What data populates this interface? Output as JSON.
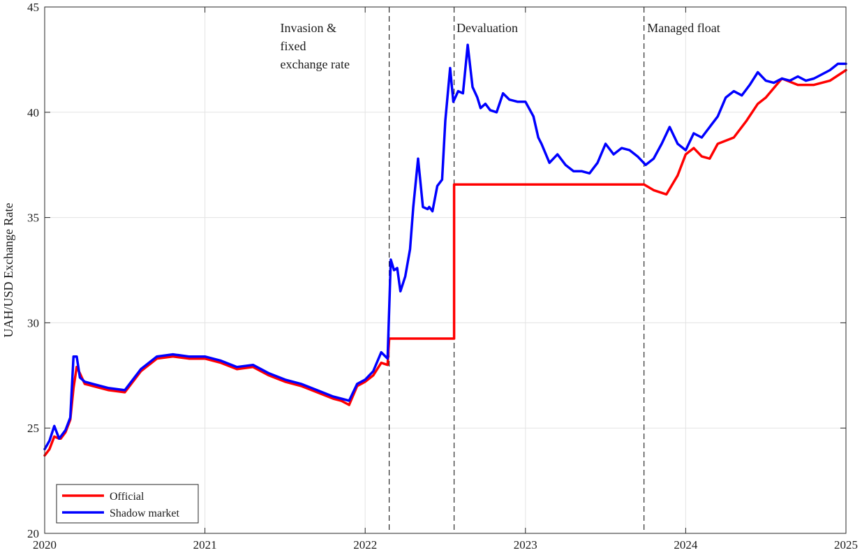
{
  "chart_data": {
    "type": "line",
    "title": "",
    "xlabel": "",
    "ylabel": "UAH/USD Exchange Rate",
    "xlim": [
      2020,
      2025
    ],
    "ylim": [
      20,
      45
    ],
    "x_ticks": [
      2020,
      2021,
      2022,
      2023,
      2024,
      2025
    ],
    "x_tick_labels": [
      "2020",
      "2021",
      "2022",
      "2023",
      "2024",
      "2025"
    ],
    "y_ticks": [
      20,
      25,
      30,
      35,
      40,
      45
    ],
    "y_tick_labels": [
      "20",
      "25",
      "30",
      "35",
      "40",
      "45"
    ],
    "grid": true,
    "legend_position": "bottom-left",
    "vlines": [
      2022.15,
      2022.555,
      2023.74
    ],
    "annotations": [
      {
        "x": 2021.47,
        "y": 43.8,
        "lines": [
          "Invasion &",
          "fixed",
          "exchange rate"
        ]
      },
      {
        "x": 2022.57,
        "y": 43.8,
        "lines": [
          "Devaluation"
        ]
      },
      {
        "x": 2023.76,
        "y": 43.8,
        "lines": [
          "Managed float"
        ]
      }
    ],
    "series": [
      {
        "name": "Official",
        "color": "#ff0000",
        "step": true,
        "x": [
          2020.0,
          2020.03,
          2020.06,
          2020.09,
          2020.1,
          2020.13,
          2020.16,
          2020.18,
          2020.2,
          2020.22,
          2020.25,
          2020.3,
          2020.4,
          2020.5,
          2020.6,
          2020.7,
          2020.8,
          2020.9,
          2021.0,
          2021.1,
          2021.2,
          2021.3,
          2021.4,
          2021.5,
          2021.6,
          2021.7,
          2021.8,
          2021.85,
          2021.9,
          2021.95,
          2022.0,
          2022.05,
          2022.1,
          2022.14,
          2022.15,
          2022.555,
          2022.555,
          2023.74,
          2023.8,
          2023.88,
          2023.95,
          2024.0,
          2024.05,
          2024.1,
          2024.15,
          2024.2,
          2024.3,
          2024.38,
          2024.45,
          2024.5,
          2024.6,
          2024.7,
          2024.8,
          2024.9,
          2025.0
        ],
        "y": [
          23.7,
          24.0,
          24.6,
          24.5,
          24.5,
          24.8,
          25.4,
          26.9,
          27.9,
          27.6,
          27.1,
          27.0,
          26.8,
          26.7,
          27.7,
          28.3,
          28.4,
          28.3,
          28.3,
          28.1,
          27.8,
          27.9,
          27.5,
          27.2,
          27.0,
          26.7,
          26.4,
          26.3,
          26.1,
          27.0,
          27.2,
          27.5,
          28.1,
          28.0,
          29.25,
          29.25,
          36.57,
          36.57,
          36.3,
          36.1,
          37.0,
          38.0,
          38.3,
          37.9,
          37.8,
          38.5,
          38.8,
          39.6,
          40.4,
          40.7,
          41.6,
          41.3,
          41.3,
          41.5,
          42.0
        ]
      },
      {
        "name": "Shadow market",
        "color": "#0000ff",
        "step": false,
        "x": [
          2020.0,
          2020.03,
          2020.06,
          2020.09,
          2020.1,
          2020.13,
          2020.16,
          2020.18,
          2020.2,
          2020.22,
          2020.25,
          2020.3,
          2020.4,
          2020.5,
          2020.6,
          2020.7,
          2020.8,
          2020.9,
          2021.0,
          2021.1,
          2021.2,
          2021.3,
          2021.4,
          2021.5,
          2021.6,
          2021.7,
          2021.8,
          2021.85,
          2021.9,
          2021.95,
          2022.0,
          2022.05,
          2022.1,
          2022.14,
          2022.16,
          2022.18,
          2022.2,
          2022.22,
          2022.25,
          2022.28,
          2022.3,
          2022.33,
          2022.36,
          2022.39,
          2022.4,
          2022.42,
          2022.45,
          2022.48,
          2022.5,
          2022.53,
          2022.55,
          2022.58,
          2022.61,
          2022.64,
          2022.67,
          2022.7,
          2022.72,
          2022.75,
          2022.78,
          2022.82,
          2022.86,
          2022.9,
          2022.95,
          2023.0,
          2023.05,
          2023.08,
          2023.1,
          2023.15,
          2023.2,
          2023.25,
          2023.3,
          2023.35,
          2023.4,
          2023.45,
          2023.5,
          2023.55,
          2023.6,
          2023.65,
          2023.7,
          2023.75,
          2023.8,
          2023.85,
          2023.9,
          2023.95,
          2024.0,
          2024.05,
          2024.1,
          2024.15,
          2024.2,
          2024.25,
          2024.3,
          2024.35,
          2024.4,
          2024.45,
          2024.5,
          2024.55,
          2024.6,
          2024.65,
          2024.7,
          2024.75,
          2024.8,
          2024.85,
          2024.9,
          2024.95,
          2025.0
        ],
        "y": [
          24.0,
          24.4,
          25.1,
          24.5,
          24.6,
          24.9,
          25.5,
          28.4,
          28.4,
          27.4,
          27.2,
          27.1,
          26.9,
          26.8,
          27.8,
          28.4,
          28.5,
          28.4,
          28.4,
          28.2,
          27.9,
          28.0,
          27.6,
          27.3,
          27.1,
          26.8,
          26.5,
          26.4,
          26.3,
          27.1,
          27.3,
          27.7,
          28.6,
          28.3,
          33.0,
          32.5,
          32.6,
          31.5,
          32.2,
          33.5,
          35.5,
          37.8,
          35.5,
          35.4,
          35.5,
          35.3,
          36.5,
          36.8,
          39.6,
          42.1,
          40.5,
          41.0,
          40.9,
          43.2,
          41.2,
          40.7,
          40.2,
          40.4,
          40.1,
          40.0,
          40.9,
          40.6,
          40.5,
          40.5,
          39.8,
          38.8,
          38.5,
          37.6,
          38.0,
          37.5,
          37.2,
          37.2,
          37.1,
          37.6,
          38.5,
          38.0,
          38.3,
          38.2,
          37.9,
          37.5,
          37.8,
          38.5,
          39.3,
          38.5,
          38.2,
          39.0,
          38.8,
          39.3,
          39.8,
          40.7,
          41.0,
          40.8,
          41.3,
          41.9,
          41.5,
          41.4,
          41.6,
          41.5,
          41.7,
          41.5,
          41.6,
          41.8,
          42.0,
          42.3,
          42.3
        ]
      }
    ]
  }
}
